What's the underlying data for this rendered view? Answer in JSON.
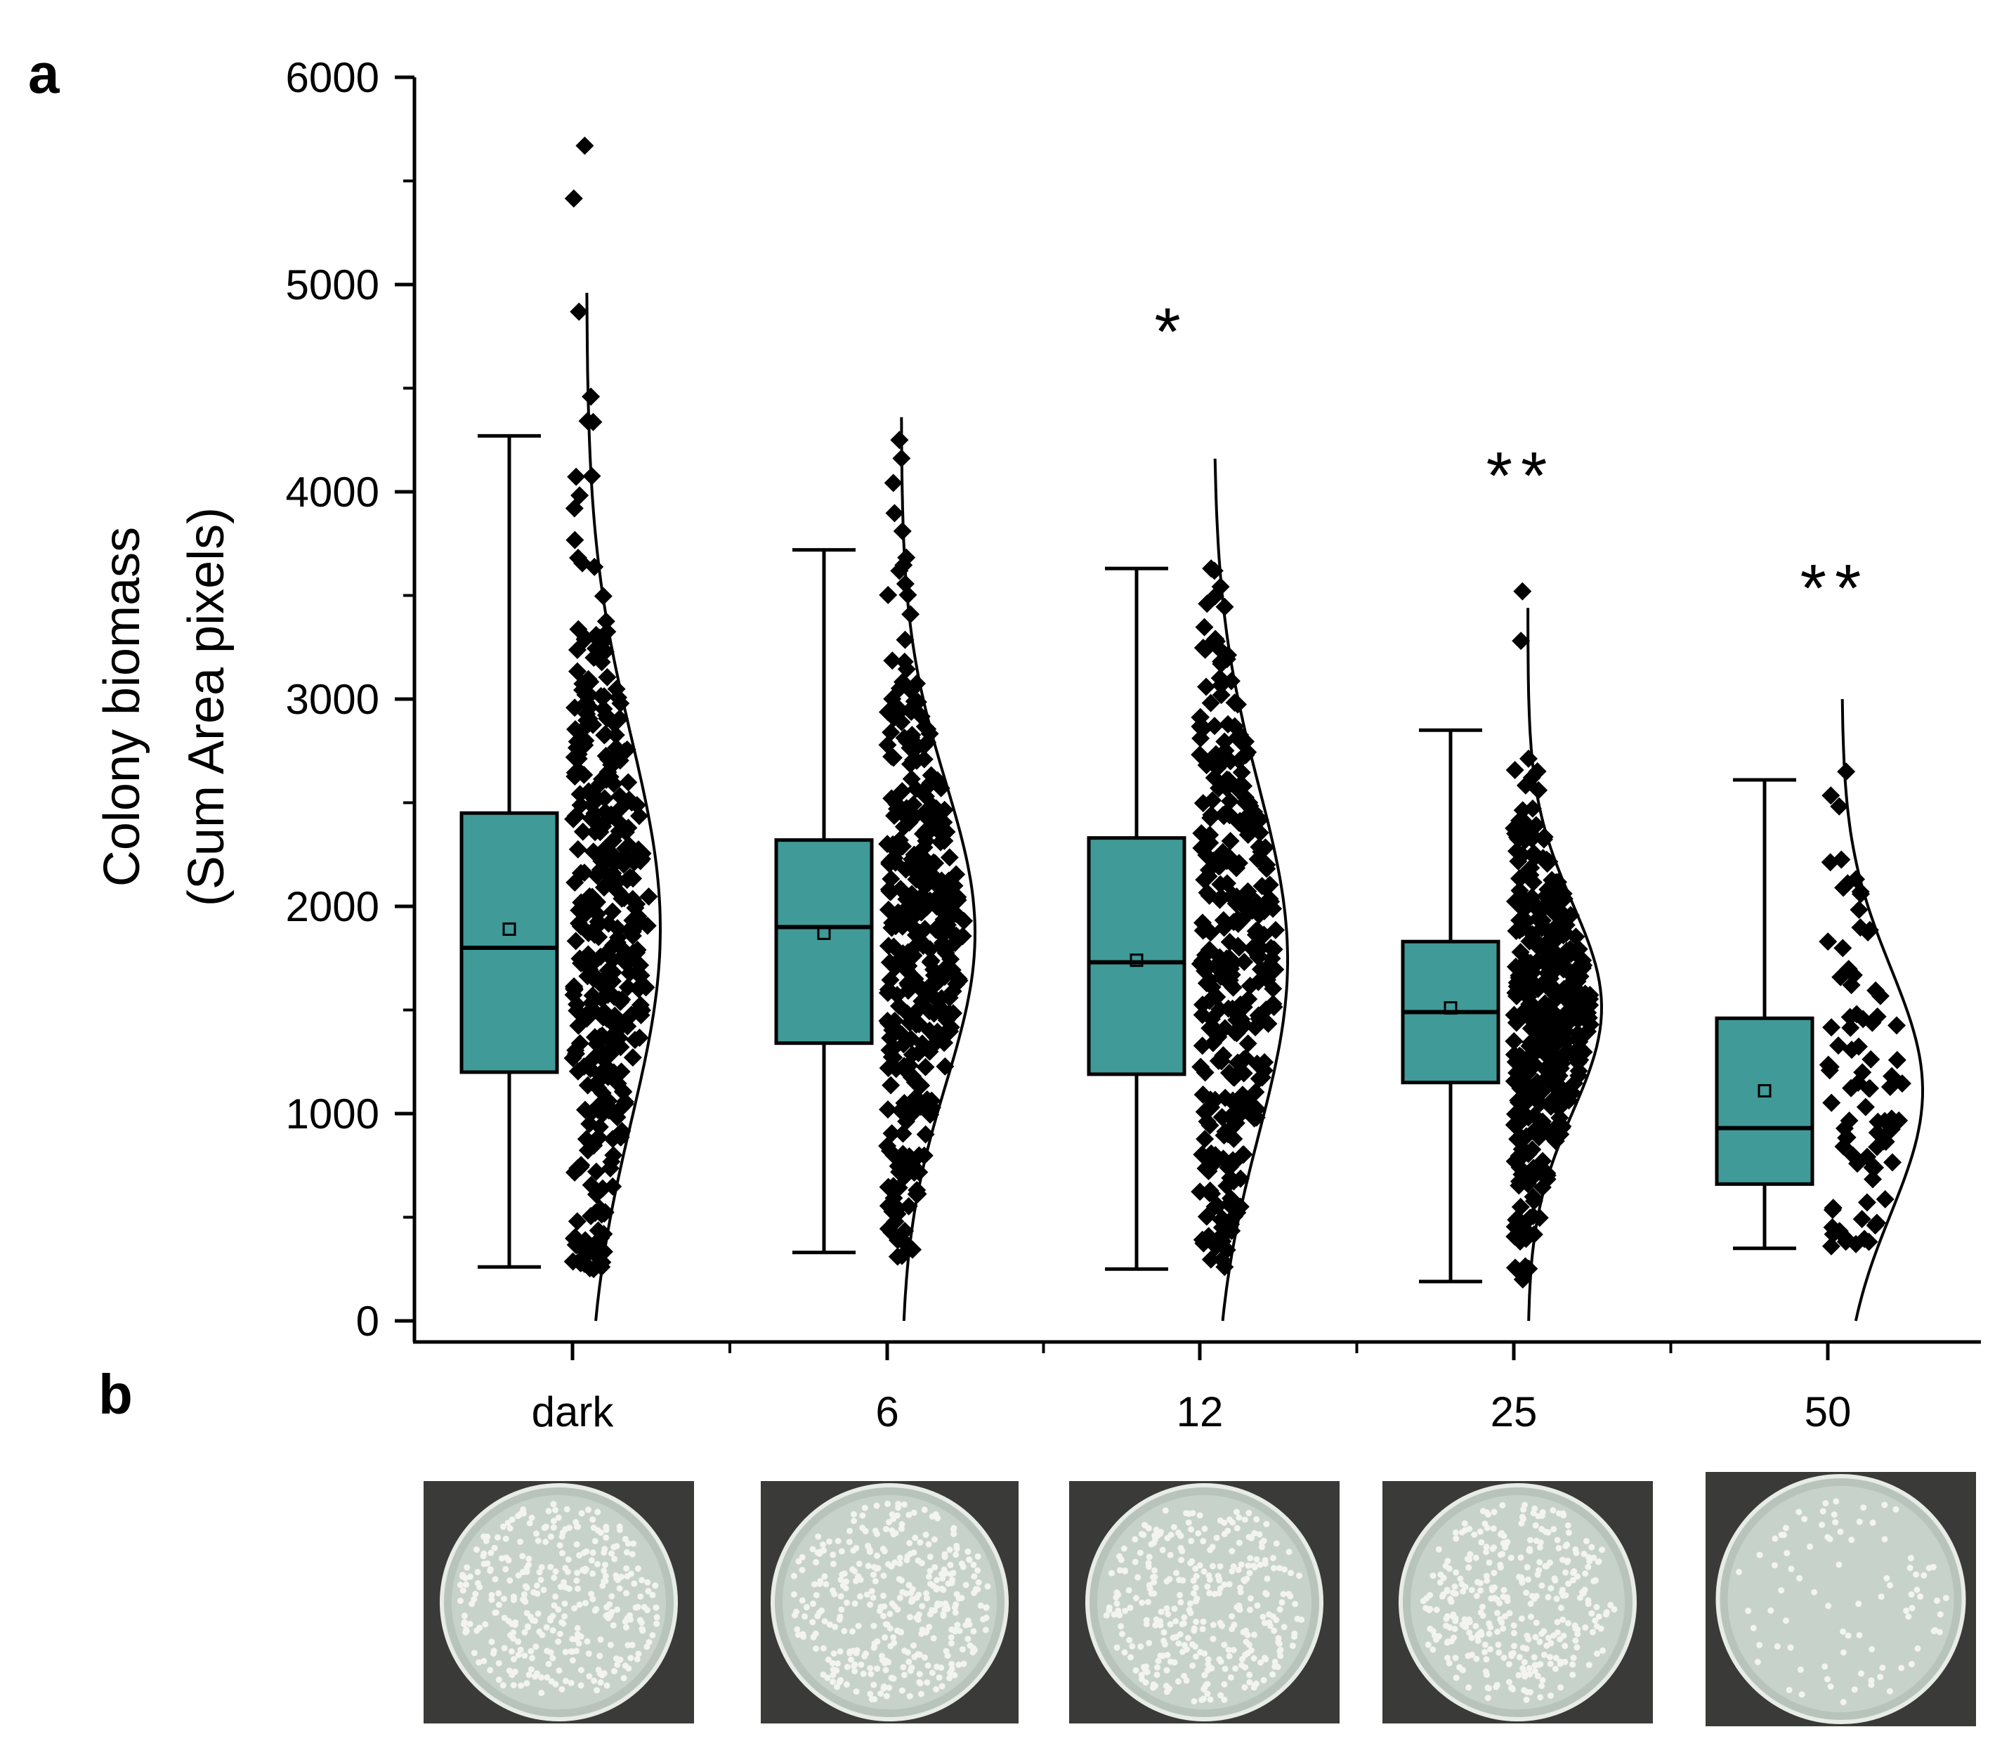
{
  "panels": {
    "a": "a",
    "b": "b"
  },
  "chart_data": {
    "type": "box",
    "title": "",
    "ylabel_line1": "Colony biomass",
    "ylabel_line2": "(Sum Area pixels)",
    "xlabel": "",
    "ylim": [
      0,
      6000
    ],
    "yticks": [
      0,
      1000,
      2000,
      3000,
      4000,
      5000,
      6000
    ],
    "categories": [
      "dark",
      "6",
      "12",
      "25",
      "50"
    ],
    "box_color": "#3f9a98",
    "point_color": "#000000",
    "groups": [
      {
        "label": "dark",
        "whisker_low": 260,
        "q1": 1200,
        "median": 1800,
        "q3": 2450,
        "whisker_high": 4270,
        "mean": 1890,
        "significance": "",
        "points_range": [
          250,
          5670
        ],
        "n_points": 380,
        "dist_curve_top": 4970
      },
      {
        "label": "6",
        "whisker_low": 330,
        "q1": 1340,
        "median": 1900,
        "q3": 2320,
        "whisker_high": 3720,
        "mean": 1870,
        "significance": "",
        "points_range": [
          310,
          4250
        ],
        "n_points": 360,
        "dist_curve_top": 4380
      },
      {
        "label": "12",
        "whisker_low": 250,
        "q1": 1190,
        "median": 1730,
        "q3": 2330,
        "whisker_high": 3630,
        "mean": 1740,
        "significance": "*",
        "points_range": [
          260,
          3630
        ],
        "n_points": 330,
        "dist_curve_top": 4190
      },
      {
        "label": "25",
        "whisker_low": 190,
        "q1": 1150,
        "median": 1490,
        "q3": 1830,
        "whisker_high": 2850,
        "mean": 1510,
        "significance": "**",
        "points_range": [
          200,
          3520
        ],
        "n_points": 400,
        "dist_curve_top": 3450
      },
      {
        "label": "50",
        "whisker_low": 350,
        "q1": 660,
        "median": 930,
        "q3": 1460,
        "whisker_high": 2610,
        "mean": 1110,
        "significance": "**",
        "points_range": [
          360,
          2650
        ],
        "n_points": 85,
        "dist_curve_top": 3030
      }
    ]
  },
  "plates": [
    "dark",
    "6",
    "12",
    "25",
    "50"
  ],
  "colors": {
    "plate_bg": "#3a3b38",
    "plate_agar": "#c7d3ca",
    "colony": "#f3f4ee"
  }
}
